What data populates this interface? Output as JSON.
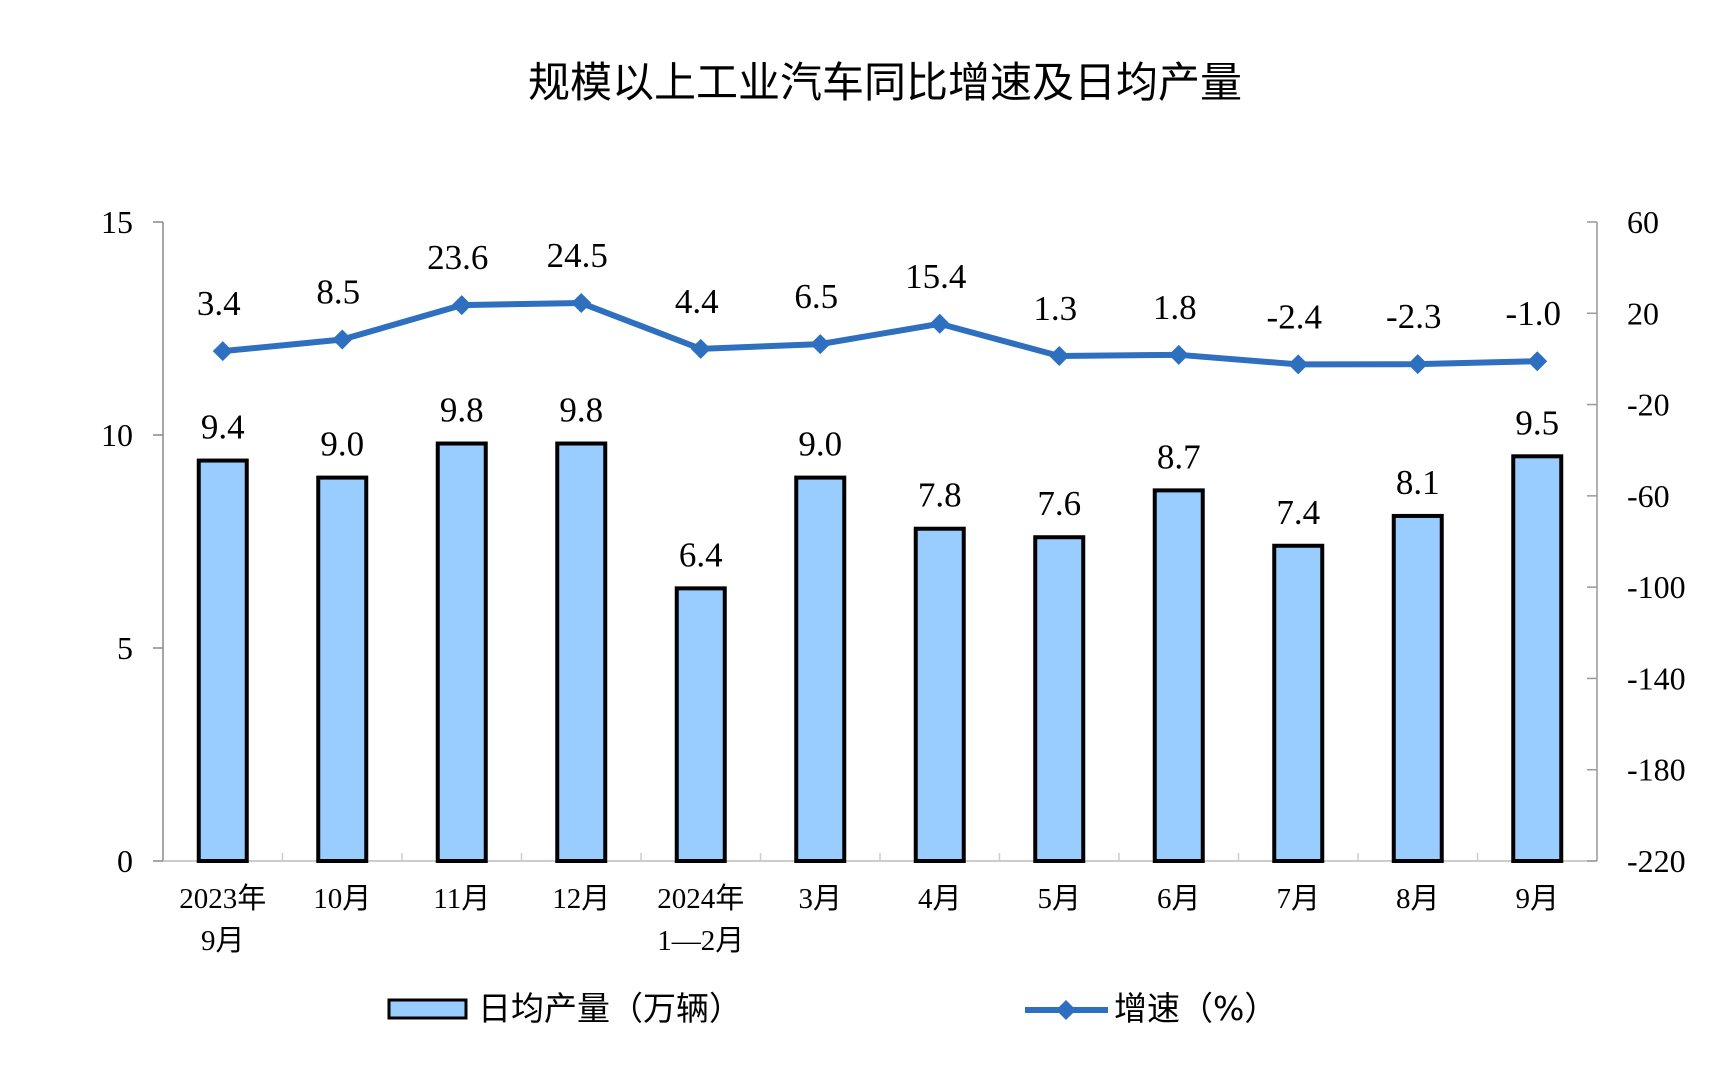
{
  "chart_data": {
    "type": "bar+line",
    "title": "规模以上工业汽车同比增速及日均产量",
    "categories": [
      [
        "2023年",
        "9月"
      ],
      [
        "10月"
      ],
      [
        "11月"
      ],
      [
        "12月"
      ],
      [
        "2024年",
        "1—2月"
      ],
      [
        "3月"
      ],
      [
        "4月"
      ],
      [
        "5月"
      ],
      [
        "6月"
      ],
      [
        "7月"
      ],
      [
        "8月"
      ],
      [
        "9月"
      ]
    ],
    "series": [
      {
        "name": "日均产量（万辆）",
        "type": "bar",
        "axis": "left",
        "color": "#99CCFF",
        "values": [
          9.4,
          9.0,
          9.8,
          9.8,
          6.4,
          9.0,
          7.8,
          7.6,
          8.7,
          7.4,
          8.1,
          9.5
        ],
        "labels": [
          "9.4",
          "9.0",
          "9.8",
          "9.8",
          "6.4",
          "9.0",
          "7.8",
          "7.6",
          "8.7",
          "7.4",
          "8.1",
          "9.5"
        ]
      },
      {
        "name": "增速（%）",
        "type": "line",
        "axis": "right",
        "color": "#2E6FBF",
        "marker": "diamond",
        "values": [
          3.4,
          8.5,
          23.6,
          24.5,
          4.4,
          6.5,
          15.4,
          1.3,
          1.8,
          -2.4,
          -2.3,
          -1.0
        ],
        "labels": [
          "3.4",
          "8.5",
          "23.6",
          "24.5",
          "4.4",
          "6.5",
          "15.4",
          "1.3",
          "1.8",
          "-2.4",
          "-2.3",
          "-1.0"
        ]
      }
    ],
    "left_axis": {
      "ylim": [
        0,
        15
      ],
      "ticks": [
        "0",
        "5",
        "10",
        "15"
      ]
    },
    "right_axis": {
      "ylim": [
        -220,
        60
      ],
      "ticks": [
        "-220",
        "-180",
        "-140",
        "-100",
        "-60",
        "-20",
        "20",
        "60"
      ]
    },
    "grid": false,
    "legend": "bottom"
  }
}
